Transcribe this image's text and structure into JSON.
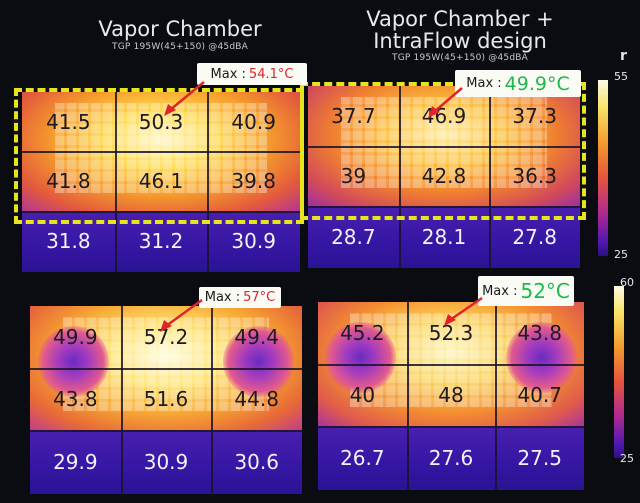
{
  "headers": {
    "left_title": "Vapor Chamber",
    "left_subtitle": "TGP 195W(45+150) @45dBA",
    "right_title_line1": "Vapor Chamber +",
    "right_title_line2": "IntraFlow design",
    "right_subtitle": "TGP 195W(45+150) @45dBA",
    "corner_mark": "r"
  },
  "panels": [
    {
      "id": "top-left",
      "callout": {
        "label": "Max : ",
        "value": "54.1°C",
        "value_color": "#e0242a"
      },
      "cells": [
        "41.5",
        "50.3",
        "40.9",
        "41.8",
        "46.1",
        "39.8",
        "31.8",
        "31.2",
        "30.9"
      ]
    },
    {
      "id": "top-right",
      "callout": {
        "label": "Max : ",
        "value": "49.9°C",
        "value_color": "#1fb84a"
      },
      "cells": [
        "37.7",
        "46.9",
        "37.3",
        "39",
        "42.8",
        "36.3",
        "28.7",
        "28.1",
        "27.8"
      ]
    },
    {
      "id": "bottom-left",
      "callout": {
        "label": "Max : ",
        "value": "57°C",
        "value_color": "#e0242a"
      },
      "cells": [
        "49.9",
        "57.2",
        "49.4",
        "43.8",
        "51.6",
        "44.8",
        "29.9",
        "30.9",
        "30.6"
      ]
    },
    {
      "id": "bottom-right",
      "callout": {
        "label": "Max : ",
        "value": "52°C",
        "value_color": "#1fb84a"
      },
      "cells": [
        "45.2",
        "52.3",
        "43.8",
        "40",
        "48",
        "40.7",
        "26.7",
        "27.6",
        "27.5"
      ]
    }
  ],
  "scales": [
    {
      "id": "top",
      "max": "55",
      "min": "25"
    },
    {
      "id": "bottom",
      "max": "60",
      "min": "25"
    }
  ],
  "colors": {
    "dash": "#e6e41c",
    "callout_bg": "#fbfbf6",
    "arrow": "#e0242a"
  }
}
